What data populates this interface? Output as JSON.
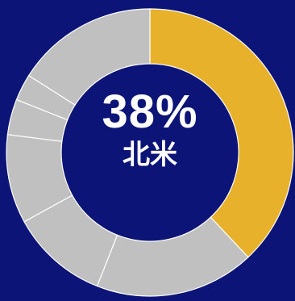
{
  "chart_data": {
    "type": "pie",
    "variant": "donut",
    "highlight": {
      "value_text": "38%",
      "label": "北米"
    },
    "slices": [
      {
        "value": 38,
        "color": "#e8b12b",
        "highlighted": true
      },
      {
        "value": 18,
        "color": "#c0c0c0",
        "highlighted": false
      },
      {
        "value": 11,
        "color": "#c0c0c0",
        "highlighted": false
      },
      {
        "value": 10,
        "color": "#c0c0c0",
        "highlighted": false
      },
      {
        "value": 4,
        "color": "#c0c0c0",
        "highlighted": false
      },
      {
        "value": 3,
        "color": "#c0c0c0",
        "highlighted": false
      },
      {
        "value": 16,
        "color": "#c0c0c0",
        "highlighted": false
      }
    ],
    "colors": {
      "background": "#0c1478",
      "highlight": "#e8b12b",
      "other": "#c0c0c0",
      "separator": "#ffffff"
    }
  }
}
